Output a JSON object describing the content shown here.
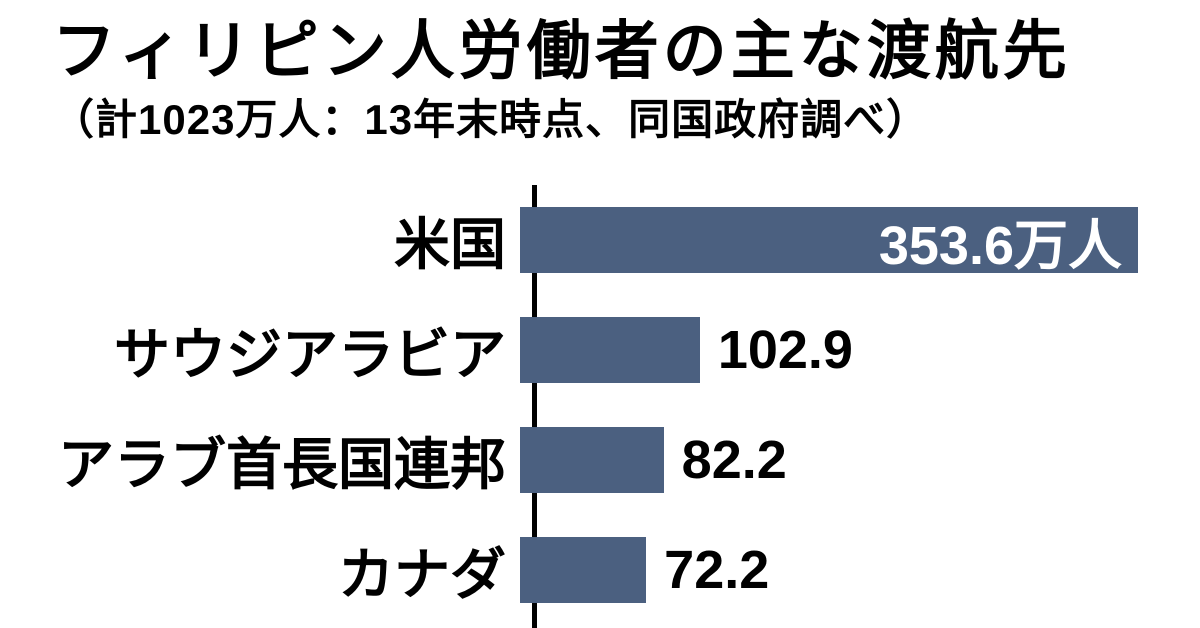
{
  "chart_data": {
    "type": "bar",
    "orientation": "horizontal",
    "title": "フィリピン人労働者の主な渡航先",
    "subtitle": "（計1023万人：13年末時点、同国政府調べ）",
    "categories": [
      "米国",
      "サウジアラビア",
      "アラブ首長国連邦",
      "カナダ"
    ],
    "values": [
      353.6,
      102.9,
      82.2,
      72.2
    ],
    "value_labels": [
      "353.6万人",
      "102.9",
      "82.2",
      "72.2"
    ],
    "unit": "万人",
    "bar_color": "#4b6080",
    "xlim": [
      0,
      353.6
    ],
    "legend": "none",
    "grid": "off",
    "value_label_position_first": "inside-right-white",
    "value_label_position_others": "outside-right-black"
  }
}
